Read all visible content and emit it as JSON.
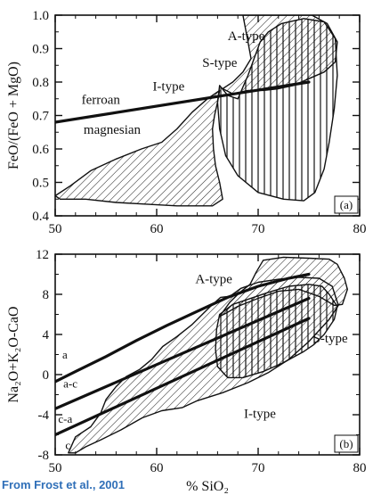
{
  "credit": "From Frost et al., 2001",
  "chart_data": [
    {
      "type": "area",
      "panel_label": "(a)",
      "ylabel": "FeO/(FeO + MgO)",
      "xlabel": "",
      "xlim": [
        50,
        80
      ],
      "ylim": [
        0.4,
        1.0
      ],
      "x_ticks": [
        50,
        60,
        70,
        80
      ],
      "y_ticks": [
        0.4,
        0.5,
        0.6,
        0.7,
        0.8,
        0.9,
        1.0
      ],
      "x_tick_labels": [
        "50",
        "60",
        "70",
        "80"
      ],
      "y_tick_labels": [
        "0.4",
        "0.5",
        "0.6",
        "0.7",
        "0.8",
        "0.9",
        "1.0"
      ],
      "fields": [
        {
          "name": "I-type",
          "fill": "diagonal-hatch",
          "points": [
            [
              50,
              0.46
            ],
            [
              51.5,
              0.49
            ],
            [
              53.5,
              0.535
            ],
            [
              56,
              0.57
            ],
            [
              58.5,
              0.6
            ],
            [
              60.5,
              0.62
            ],
            [
              62,
              0.66
            ],
            [
              63.5,
              0.71
            ],
            [
              65,
              0.75
            ],
            [
              66.2,
              0.775
            ],
            [
              66,
              0.74
            ],
            [
              65.7,
              0.7
            ],
            [
              65.5,
              0.66
            ],
            [
              65.6,
              0.6
            ],
            [
              65.8,
              0.55
            ],
            [
              66.2,
              0.5
            ],
            [
              66.5,
              0.45
            ],
            [
              65.5,
              0.43
            ],
            [
              62,
              0.43
            ],
            [
              59,
              0.435
            ],
            [
              56,
              0.44
            ],
            [
              53,
              0.45
            ],
            [
              50.5,
              0.45
            ]
          ]
        },
        {
          "name": "S-type",
          "fill": "vertical-lines",
          "points": [
            [
              66.2,
              0.79
            ],
            [
              67,
              0.76
            ],
            [
              68,
              0.75
            ],
            [
              69,
              0.82
            ],
            [
              69.6,
              0.87
            ],
            [
              70.2,
              0.92
            ],
            [
              71,
              0.95
            ],
            [
              72.3,
              0.975
            ],
            [
              74.5,
              0.99
            ],
            [
              76.5,
              0.98
            ],
            [
              77.6,
              0.93
            ],
            [
              77.8,
              0.82
            ],
            [
              77.5,
              0.72
            ],
            [
              77,
              0.62
            ],
            [
              76.5,
              0.54
            ],
            [
              75.6,
              0.47
            ],
            [
              74.5,
              0.445
            ],
            [
              72.5,
              0.45
            ],
            [
              70,
              0.47
            ],
            [
              68,
              0.52
            ],
            [
              66.8,
              0.58
            ],
            [
              66.2,
              0.66
            ],
            [
              66,
              0.74
            ]
          ]
        },
        {
          "name": "A-type",
          "fill": "diagonal-hatch",
          "points": [
            [
              68.5,
              1.0
            ],
            [
              69,
              0.92
            ],
            [
              69.3,
              0.87
            ],
            [
              68.5,
              0.83
            ],
            [
              67.5,
              0.8
            ],
            [
              66.5,
              0.78
            ],
            [
              67.5,
              0.765
            ],
            [
              69,
              0.775
            ],
            [
              70.5,
              0.775
            ],
            [
              72,
              0.78
            ],
            [
              73.5,
              0.79
            ],
            [
              75,
              0.81
            ],
            [
              76.5,
              0.83
            ],
            [
              77.6,
              0.86
            ],
            [
              77.8,
              0.92
            ],
            [
              76.8,
              0.975
            ],
            [
              75.3,
              1.0
            ]
          ]
        }
      ],
      "lines": [
        {
          "name": "ferroan/magnesian boundary",
          "points": [
            [
              50,
              0.68
            ],
            [
              75,
              0.8
            ]
          ]
        }
      ],
      "annotations": [
        {
          "text": "A-type",
          "x": 67.0,
          "y": 0.925
        },
        {
          "text": "S-type",
          "x": 64.5,
          "y": 0.845
        },
        {
          "text": "I-type",
          "x": 59.6,
          "y": 0.775
        },
        {
          "text": "ferroan",
          "x": 52.6,
          "y": 0.735
        },
        {
          "text": "magnesian",
          "x": 52.8,
          "y": 0.645
        }
      ]
    },
    {
      "type": "area",
      "panel_label": "(b)",
      "ylabel": "Na₂O+K₂O-CaO",
      "xlabel": "% SiO₂",
      "xlim": [
        50,
        80
      ],
      "ylim": [
        -8,
        12
      ],
      "x_ticks": [
        50,
        60,
        70,
        80
      ],
      "y_ticks": [
        -8,
        -4,
        0,
        4,
        8,
        12
      ],
      "x_tick_labels": [
        "50",
        "60",
        "70",
        "80"
      ],
      "y_tick_labels": [
        "-8",
        "-4",
        "0",
        "4",
        "8",
        "12"
      ],
      "fields": [
        {
          "name": "I-type",
          "fill": "diagonal-hatch",
          "points": [
            [
              51.3,
              -7.8
            ],
            [
              52,
              -6.2
            ],
            [
              53.5,
              -5.2
            ],
            [
              54.5,
              -3.8
            ],
            [
              55,
              -2.5
            ],
            [
              56,
              -1.2
            ],
            [
              57,
              -0.2
            ],
            [
              58.3,
              0.5
            ],
            [
              59.5,
              1.5
            ],
            [
              60.6,
              2.8
            ],
            [
              62,
              3.8
            ],
            [
              63.5,
              5.0
            ],
            [
              65.2,
              6.7
            ],
            [
              66.3,
              7.7
            ],
            [
              67.2,
              7.8
            ],
            [
              68.3,
              8.6
            ],
            [
              70,
              9.2
            ],
            [
              72,
              9.5
            ],
            [
              74,
              9.7
            ],
            [
              76,
              9.6
            ],
            [
              77.3,
              8.8
            ],
            [
              77.9,
              6.9
            ],
            [
              77,
              5.5
            ],
            [
              75,
              3.3
            ],
            [
              73,
              1.5
            ],
            [
              71,
              0.2
            ],
            [
              69,
              -0.8
            ],
            [
              66.5,
              -1.8
            ],
            [
              64,
              -2.6
            ],
            [
              62.5,
              -3.3
            ],
            [
              60.5,
              -3.6
            ],
            [
              58.6,
              -4.3
            ],
            [
              56.5,
              -5.5
            ],
            [
              54.5,
              -6.5
            ],
            [
              53,
              -7.2
            ],
            [
              52,
              -7.8
            ]
          ]
        },
        {
          "name": "S-type",
          "fill": "vertical-lines",
          "points": [
            [
              66.2,
              6.0
            ],
            [
              67.5,
              7.0
            ],
            [
              69,
              7.5
            ],
            [
              71,
              8.2
            ],
            [
              73,
              8.8
            ],
            [
              75,
              9.0
            ],
            [
              76.3,
              8.8
            ],
            [
              77,
              8.0
            ],
            [
              77.8,
              6.8
            ],
            [
              77.5,
              5.5
            ],
            [
              76.5,
              4.0
            ],
            [
              75.5,
              3.0
            ],
            [
              74.5,
              2.3
            ],
            [
              72.5,
              1.2
            ],
            [
              70.5,
              0.3
            ],
            [
              68.5,
              -0.3
            ],
            [
              67,
              -0.3
            ],
            [
              66,
              0.8
            ],
            [
              65.8,
              2.5
            ],
            [
              65.9,
              4.5
            ]
          ]
        },
        {
          "name": "A-type",
          "fill": "diagonal-hatch",
          "points": [
            [
              66.2,
              5.8
            ],
            [
              67.2,
              7.2
            ],
            [
              68.2,
              8.2
            ],
            [
              69.2,
              9.0
            ],
            [
              69.8,
              10.2
            ],
            [
              70.5,
              11.4
            ],
            [
              72.5,
              11.7
            ],
            [
              75,
              11.6
            ],
            [
              77,
              11.5
            ],
            [
              77.8,
              11.0
            ],
            [
              78.5,
              9.6
            ],
            [
              78.8,
              8.5
            ],
            [
              78.3,
              7.0
            ],
            [
              77.5,
              6.9
            ],
            [
              76,
              7.8
            ],
            [
              74,
              8.5
            ],
            [
              72,
              8.3
            ],
            [
              70,
              7.6
            ],
            [
              68,
              6.8
            ],
            [
              66.8,
              6.1
            ]
          ]
        }
      ],
      "lines": [
        {
          "name": "a",
          "points": [
            [
              50,
              -0.7
            ],
            [
              52,
              0.3
            ],
            [
              55,
              1.8
            ],
            [
              58,
              3.4
            ],
            [
              61,
              4.9
            ],
            [
              64,
              6.3
            ],
            [
              67,
              7.7
            ],
            [
              70,
              8.8
            ],
            [
              73,
              9.6
            ],
            [
              75,
              10.0
            ]
          ]
        },
        {
          "name": "a-c",
          "points": [
            [
              50,
              -3.4
            ],
            [
              75,
              7.6
            ]
          ]
        },
        {
          "name": "c-a",
          "points": [
            [
              50,
              -6.0
            ],
            [
              75,
              5.6
            ]
          ]
        }
      ],
      "annotations": [
        {
          "text": "A-type",
          "x": 63.8,
          "y": 9.1
        },
        {
          "text": "S-type",
          "x": 75.4,
          "y": 3.2
        },
        {
          "text": "I-type",
          "x": 68.6,
          "y": -4.3
        },
        {
          "text": "a",
          "x": 50.7,
          "y": 1.6
        },
        {
          "text": "a-c",
          "x": 50.8,
          "y": -1.3
        },
        {
          "text": "c-a",
          "x": 50.3,
          "y": -4.8
        },
        {
          "text": "c",
          "x": 51.0,
          "y": -7.4
        }
      ]
    }
  ]
}
